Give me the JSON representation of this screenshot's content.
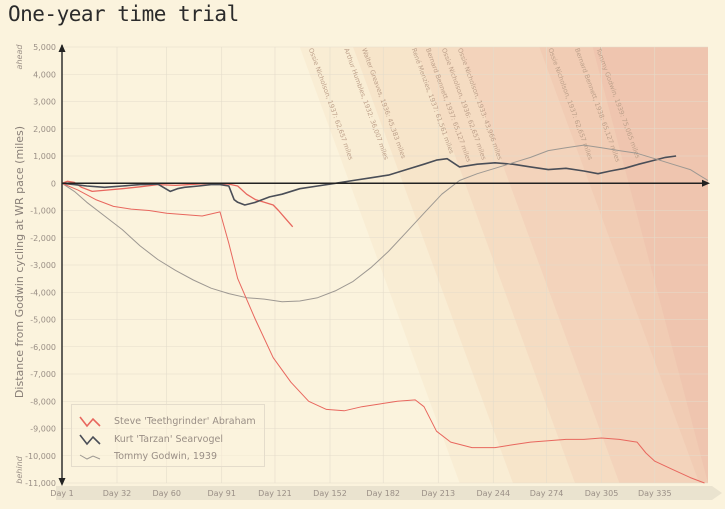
{
  "title": "One-year time trial",
  "chart_data": {
    "type": "line",
    "title": "One-year time trial",
    "ylabel": "Distance from Godwin cycling at WR pace (miles)",
    "xlabel": "",
    "ylim": [
      -11000,
      5000
    ],
    "xlim": [
      1,
      365
    ],
    "y_ticks": [
      5000,
      4000,
      3000,
      2000,
      1000,
      0,
      -1000,
      -2000,
      -3000,
      -4000,
      -5000,
      -6000,
      -7000,
      -8000,
      -9000,
      -10000,
      -11000
    ],
    "y_tick_labels": [
      "5,000",
      "4,000",
      "3,000",
      "2,000",
      "1,000",
      "0",
      "-1,000",
      "-2,000",
      "-3,000",
      "-4,000",
      "-5,000",
      "-6,000",
      "-7,000",
      "-8,000",
      "-9,000",
      "-10,000",
      "-11,000"
    ],
    "x_ticks": [
      1,
      32,
      60,
      91,
      121,
      152,
      182,
      213,
      244,
      274,
      305,
      335
    ],
    "x_tick_labels": [
      "Day 1",
      "Day 32",
      "Day 60",
      "Day 91",
      "Day 121",
      "Day 152",
      "Day 182",
      "Day 213",
      "Day 244",
      "Day 274",
      "Day 305",
      "Day 335"
    ],
    "axis_end_labels": {
      "top": "ahead",
      "bottom": "behind"
    },
    "grid": true,
    "legend_position": "bottom-left",
    "record_labels": [
      {
        "day": 140,
        "text": "Ossie Nicholson, 1937: 62,657 miles"
      },
      {
        "day": 160,
        "text": "Arthur Humbles, 1932: 36,007 miles"
      },
      {
        "day": 170,
        "text": "Walter Greaves, 1936: 45,383 miles"
      },
      {
        "day": 198,
        "text": "René Menzies, 1937: 61,561 miles"
      },
      {
        "day": 206,
        "text": "Bernard Bennett, 1937: 65,127 miles"
      },
      {
        "day": 215,
        "text": "Ossie Nicholson, 1936: 62,657 miles"
      },
      {
        "day": 224,
        "text": "Ossie Nicholson, 1933: 43,966 miles"
      },
      {
        "day": 275,
        "text": "Ossie Nicholson, 1937: 62,657 miles"
      },
      {
        "day": 290,
        "text": "Bernard Bennett, 1938: 65,127 miles"
      },
      {
        "day": 302,
        "text": "Tommy Godwin, 1939: 75,065 miles"
      }
    ],
    "series": [
      {
        "name": "Steve 'Teethgrinder' Abraham",
        "color": "#e8675e",
        "width": 1.3,
        "x": [
          1,
          4,
          8,
          12,
          18,
          26,
          35,
          45,
          55,
          65,
          75,
          85,
          91,
          95,
          100,
          105,
          110,
          115,
          120,
          123,
          127,
          131
        ],
        "y": [
          0,
          70,
          30,
          -150,
          -300,
          -250,
          -200,
          -130,
          -50,
          -80,
          -40,
          0,
          -20,
          -30,
          -100,
          -400,
          -600,
          -700,
          -800,
          -1000,
          -1300,
          -1600
        ]
      },
      {
        "name": "Kurt 'Tarzan' Searvogel",
        "color": "#4a4e57",
        "width": 1.6,
        "x": [
          1,
          8,
          15,
          25,
          35,
          45,
          55,
          62,
          66,
          70,
          78,
          85,
          90,
          95,
          98,
          100,
          104,
          110,
          118,
          125,
          135,
          145,
          155,
          165,
          175,
          185,
          195,
          205,
          212,
          218,
          225,
          235,
          245,
          255,
          265,
          275,
          285,
          295,
          303,
          310,
          318,
          326,
          335,
          341,
          347
        ],
        "y": [
          0,
          -50,
          -100,
          -150,
          -100,
          -50,
          -30,
          -300,
          -200,
          -150,
          -100,
          -50,
          -50,
          -100,
          -600,
          -700,
          -800,
          -700,
          -500,
          -400,
          -200,
          -100,
          0,
          100,
          200,
          300,
          500,
          700,
          850,
          900,
          600,
          700,
          750,
          700,
          600,
          500,
          550,
          450,
          350,
          450,
          550,
          700,
          850,
          950,
          1000
        ]
      },
      {
        "name": "Tommy Godwin, 1939",
        "color": "#9d9892",
        "width": 1.0,
        "x": [
          1,
          8,
          15,
          25,
          35,
          45,
          55,
          65,
          75,
          85,
          95,
          105,
          115,
          125,
          135,
          145,
          155,
          165,
          175,
          185,
          195,
          205,
          215,
          225,
          235,
          245,
          255,
          265,
          275,
          285,
          295,
          305,
          315,
          325,
          335,
          345,
          355,
          360,
          365
        ],
        "y": [
          0,
          -300,
          -700,
          -1200,
          -1700,
          -2300,
          -2800,
          -3200,
          -3550,
          -3850,
          -4050,
          -4200,
          -4250,
          -4350,
          -4320,
          -4200,
          -3950,
          -3600,
          -3100,
          -2500,
          -1800,
          -1100,
          -400,
          100,
          350,
          550,
          750,
          950,
          1200,
          1300,
          1400,
          1300,
          1200,
          1100,
          900,
          700,
          500,
          300,
          100
        ]
      },
      {
        "name": "",
        "color": "#e8675e",
        "width": 1.0,
        "x": [
          1,
          10,
          20,
          30,
          40,
          50,
          60,
          70,
          80,
          90,
          95,
          100,
          110,
          120,
          130,
          140,
          150,
          160,
          170,
          180,
          190,
          200,
          205,
          212,
          220,
          232,
          245,
          255,
          265,
          275,
          285,
          295,
          305,
          315,
          325,
          330,
          335,
          345,
          355,
          363
        ],
        "y": [
          0,
          -250,
          -600,
          -850,
          -950,
          -1000,
          -1100,
          -1150,
          -1200,
          -1050,
          -2200,
          -3500,
          -5000,
          -6400,
          -7300,
          -8000,
          -8300,
          -8350,
          -8200,
          -8100,
          -8000,
          -7950,
          -8200,
          -9100,
          -9500,
          -9700,
          -9700,
          -9600,
          -9500,
          -9450,
          -9400,
          -9400,
          -9350,
          -9400,
          -9500,
          -9900,
          -10200,
          -10500,
          -10800,
          -11000
        ]
      }
    ]
  },
  "legend": {
    "items": [
      {
        "label": "Steve 'Teethgrinder' Abraham",
        "color": "#e8675e"
      },
      {
        "label": "Kurt 'Tarzan' Searvogel",
        "color": "#4a4e57"
      },
      {
        "label": "Tommy Godwin, 1939",
        "color": "#9d9892"
      }
    ]
  }
}
